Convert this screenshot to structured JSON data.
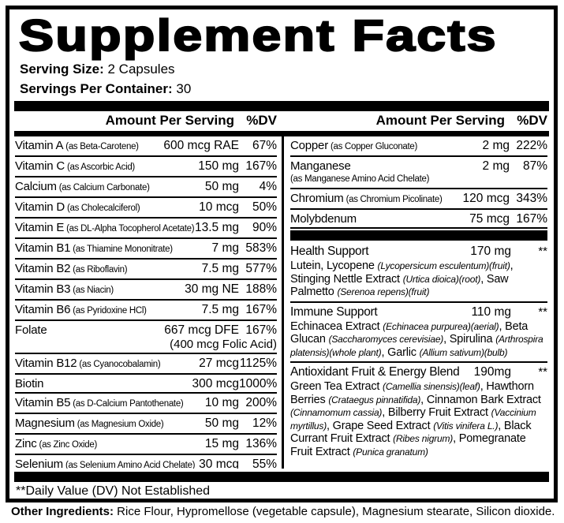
{
  "title": "Supplement Facts",
  "serving": {
    "size_label": "Serving Size:",
    "size_value": " 2 Capsules",
    "container_label": "Servings Per Container:",
    "container_value": " 30"
  },
  "table": {
    "amount_header": "Amount Per Serving",
    "dv_header": "%DV",
    "left_rows": [
      {
        "name": "Vitamin A",
        "form": "(as Beta-Carotene)",
        "amount": "600 mcg RAE",
        "dv": "67%"
      },
      {
        "name": "Vitamin C",
        "form": "(as Ascorbic Acid)",
        "amount": "150 mg",
        "dv": "167%"
      },
      {
        "name": "Calcium",
        "form": "(as Calcium Carbonate)",
        "amount": "50 mg",
        "dv": "4%"
      },
      {
        "name": "Vitamin D",
        "form": "(as Cholecalciferol)",
        "amount": "10 mcg",
        "dv": "50%"
      },
      {
        "name": "Vitamin E",
        "form": "(as DL-Alpha Tocopherol Acetate)",
        "amount": "13.5 mg",
        "dv": "90%"
      },
      {
        "name": "Vitamin B1",
        "form": "(as Thiamine Mononitrate)",
        "amount": "7 mg",
        "dv": "583%"
      },
      {
        "name": "Vitamin B2",
        "form": "(as Riboflavin)",
        "amount": "7.5 mg",
        "dv": "577%"
      },
      {
        "name": "Vitamin B3",
        "form": "(as Niacin)",
        "amount": "30 mg NE",
        "dv": "188%"
      },
      {
        "name": "Vitamin B6",
        "form": "(as Pyridoxine HCl)",
        "amount": "7.5 mg",
        "dv": "167%"
      },
      {
        "name": "Folate",
        "form": "",
        "amount": "667 mcg DFE",
        "amount2": "(400 mcg Folic Acid)",
        "dv": "167%"
      },
      {
        "name": "Vitamin B12",
        "form": "(as Cyanocobalamin)",
        "amount": "27 mcg",
        "dv": "1125%"
      },
      {
        "name": "Biotin",
        "form": "",
        "amount": "300 mcg",
        "dv": "1000%"
      },
      {
        "name": "Vitamin B5",
        "form": "(as D-Calcium Pantothenate)",
        "amount": "10 mg",
        "dv": "200%"
      },
      {
        "name": "Magnesium",
        "form": "(as Magnesium Oxide)",
        "amount": "50 mg",
        "dv": "12%"
      },
      {
        "name": "Zinc",
        "form": "(as Zinc Oxide)",
        "amount": "15 mg",
        "dv": "136%"
      },
      {
        "name": "Selenium",
        "form": "(as Selenium Amino Acid Chelate)",
        "amount": "30 mcg",
        "dv": "55%"
      }
    ],
    "right_rows": [
      {
        "name": "Copper",
        "form": "(as Copper Gluconate)",
        "amount": "2 mg",
        "dv": "222%"
      },
      {
        "name": "Manganese",
        "form": "(as Manganese Amino Acid Chelate)",
        "form_block": true,
        "amount": "2 mg",
        "dv": "87%"
      },
      {
        "name": "Chromium",
        "form": "(as Chromium Picolinate)",
        "amount": "120 mcg",
        "dv": "343%"
      },
      {
        "name": "Molybdenum",
        "form": "",
        "amount": "75 mcg",
        "dv": "167%"
      }
    ],
    "blends": [
      {
        "name": "Health Support",
        "amount": "170 mg",
        "dv": "**",
        "ingredients": [
          {
            "text": "Lutein, Lycopene ",
            "italic": false
          },
          {
            "text": "(Lycopersicum esculentum)(fruit)",
            "italic": true
          },
          {
            "text": ", Stinging Nettle Extract ",
            "italic": false
          },
          {
            "text": "(Urtica dioica)(root)",
            "italic": true
          },
          {
            "text": ", Saw Palmetto ",
            "italic": false
          },
          {
            "text": "(Serenoa repens)(fruit)",
            "italic": true
          }
        ]
      },
      {
        "name": "Immune Support",
        "amount": "110 mg",
        "dv": "**",
        "ingredients": [
          {
            "text": "Echinacea Extract ",
            "italic": false
          },
          {
            "text": "(Echinacea purpurea)(aerial)",
            "italic": true
          },
          {
            "text": ", Beta Glucan ",
            "italic": false
          },
          {
            "text": "(Saccharomyces cerevisiae)",
            "italic": true
          },
          {
            "text": ", Spirulina ",
            "italic": false
          },
          {
            "text": "(Arthrospira platensis)(whole plant)",
            "italic": true
          },
          {
            "text": ", Garlic ",
            "italic": false
          },
          {
            "text": "(Allium sativum)(bulb)",
            "italic": true
          }
        ]
      },
      {
        "name": "Antioxidant Fruit & Energy Blend",
        "amount": "190mg",
        "dv": "**",
        "ingredients": [
          {
            "text": "Green Tea Extract ",
            "italic": false
          },
          {
            "text": "(Camellia sinensis)(leaf)",
            "italic": true
          },
          {
            "text": ", Hawthorn Berries ",
            "italic": false
          },
          {
            "text": "(Crataegus pinnatifida)",
            "italic": true
          },
          {
            "text": ", Cinnamon Bark Extract ",
            "italic": false
          },
          {
            "text": "(Cinnamomum cassia)",
            "italic": true
          },
          {
            "text": ", Bilberry Fruit Extract ",
            "italic": false
          },
          {
            "text": "(Vaccinium myrtillus)",
            "italic": true
          },
          {
            "text": ", Grape Seed Extract ",
            "italic": false
          },
          {
            "text": "(Vitis vinifera L.)",
            "italic": true
          },
          {
            "text": ", Black Currant Fruit Extract ",
            "italic": false
          },
          {
            "text": "(Ribes nigrum)",
            "italic": true
          },
          {
            "text": ", Pomegranate Fruit Extract ",
            "italic": false
          },
          {
            "text": "(Punica granatum)",
            "italic": true
          }
        ]
      }
    ]
  },
  "footnote": "**Daily Value (DV) Not Established",
  "other_ingredients": {
    "label": "Other Ingredients:",
    "value": " Rice Flour, Hypromellose (vegetable capsule), Magnesium stearate, Silicon dioxide."
  },
  "colors": {
    "ink": "#000000",
    "paper": "#ffffff"
  }
}
